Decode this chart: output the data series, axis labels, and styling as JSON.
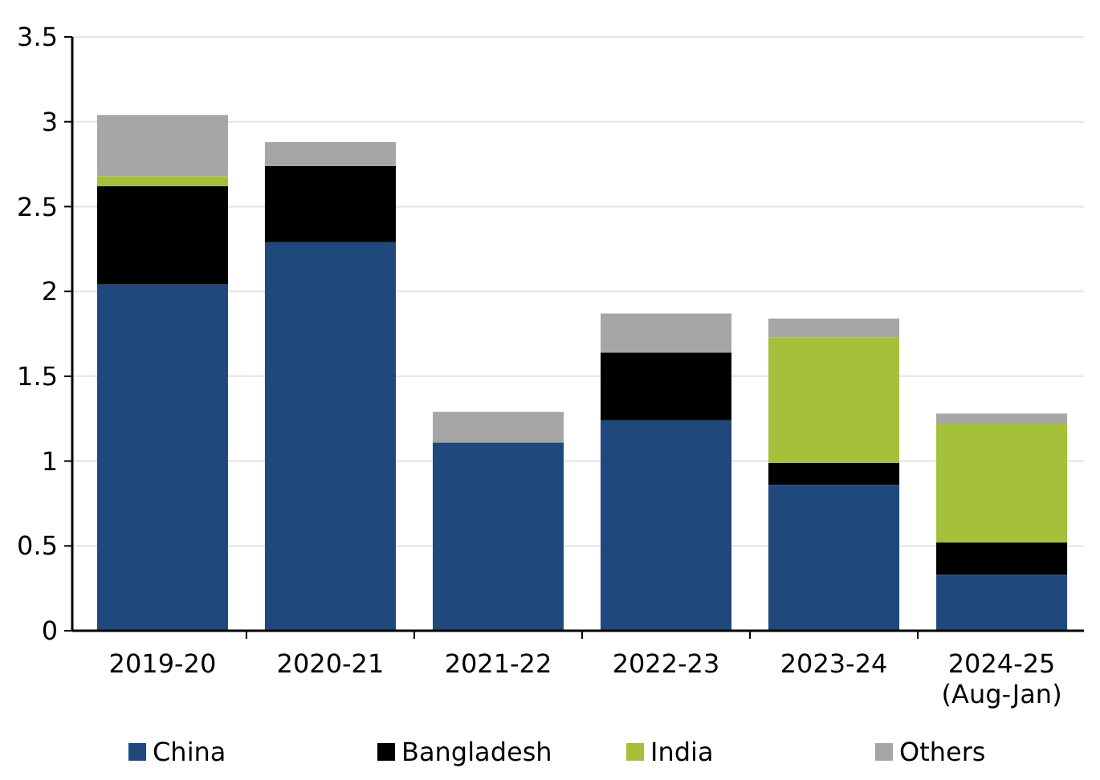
{
  "chart_data": {
    "type": "bar",
    "stacked": true,
    "categories": [
      "2019-20",
      "2020-21",
      "2021-22",
      "2022-23",
      "2023-24",
      "2024-25\n(Aug-Jan)"
    ],
    "series": [
      {
        "name": "China",
        "color": "#1f497d",
        "values": [
          2.04,
          2.29,
          1.11,
          1.24,
          0.86,
          0.33
        ]
      },
      {
        "name": "Bangladesh",
        "color": "#000000",
        "values": [
          0.58,
          0.45,
          0,
          0.4,
          0.13,
          0.19
        ]
      },
      {
        "name": "India",
        "color": "#a5c03a",
        "values": [
          0.06,
          0,
          0,
          0,
          0.74,
          0.7
        ]
      },
      {
        "name": "Others",
        "color": "#a6a6a6",
        "values": [
          0.36,
          0.14,
          0.18,
          0.23,
          0.11,
          0.06
        ]
      }
    ],
    "ylim": [
      0,
      3.5
    ],
    "yticks": [
      0,
      0.5,
      1,
      1.5,
      2,
      2.5,
      3,
      3.5
    ],
    "grid": "y",
    "legend": "bottom"
  }
}
